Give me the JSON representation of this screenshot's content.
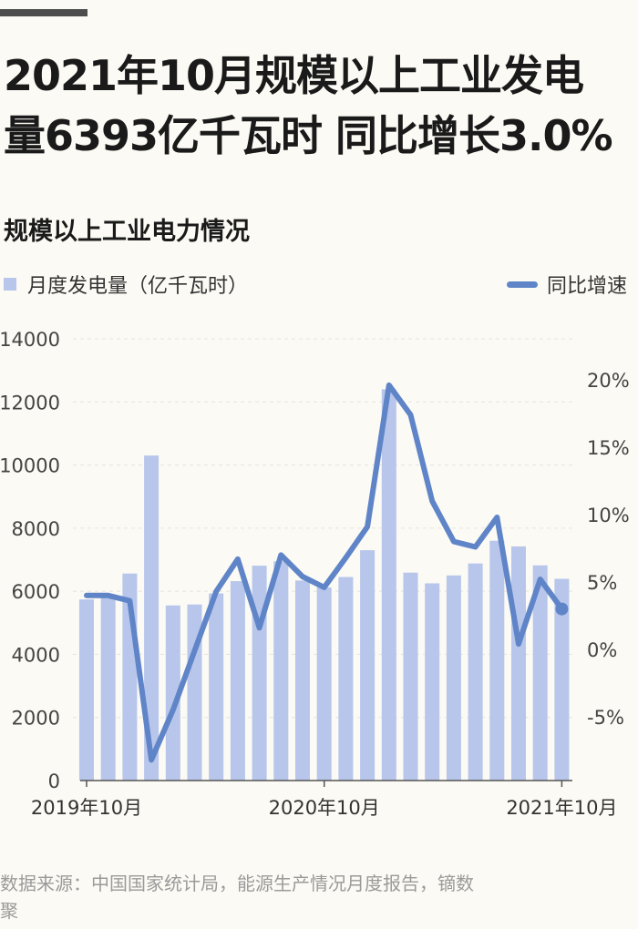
{
  "headline": "2021年10月规模以上工业发电\n量6393亿千瓦时 同比增长3.0%",
  "subtitle": "规模以上工业电力情况",
  "source": "数据来源：中国国家统计局，能源生产情况月度报告，镝数聚",
  "colors": {
    "bar": "#b7c6ea",
    "line": "#5f85c8",
    "grid": "#e6e4dc",
    "axis": "#555555"
  },
  "chart_data": {
    "type": "bar+line",
    "series": [
      {
        "name": "月度发电量（亿千瓦时）",
        "type": "bar",
        "axis": "left",
        "values": [
          5740,
          5900,
          6560,
          10300,
          5550,
          5580,
          5930,
          6320,
          6810,
          6950,
          6340,
          6120,
          6450,
          7300,
          12400,
          6590,
          6250,
          6500,
          6880,
          7600,
          7420,
          6820,
          6393
        ]
      },
      {
        "name": "同比增速",
        "type": "line",
        "axis": "right",
        "values": [
          4.0,
          4.0,
          3.6,
          -8.2,
          -4.5,
          -0.1,
          4.3,
          6.7,
          1.6,
          7.0,
          5.4,
          4.6,
          6.8,
          9.1,
          19.6,
          17.4,
          11.0,
          8.0,
          7.6,
          9.8,
          0.4,
          5.2,
          3.0
        ]
      }
    ],
    "x_ticks": [
      {
        "index": 0,
        "label": "2019年10月"
      },
      {
        "index": 11,
        "label": "2020年10月"
      },
      {
        "index": 22,
        "label": "2021年10月"
      }
    ],
    "y_left": {
      "min": 0,
      "max": 14000,
      "step": 2000,
      "ticks": [
        "0",
        "2000",
        "4000",
        "6000",
        "8000",
        "10000",
        "12000",
        "14000"
      ]
    },
    "y_right": {
      "min": -10,
      "max": 22.5,
      "ticks": [
        {
          "value": -5,
          "label": "-5%"
        },
        {
          "value": 0,
          "label": "0%"
        },
        {
          "value": 5,
          "label": "5%"
        },
        {
          "value": 10,
          "label": "10%"
        },
        {
          "value": 15,
          "label": "15%"
        },
        {
          "value": 20,
          "label": "20%"
        }
      ]
    },
    "grid": true,
    "legend": "top"
  }
}
